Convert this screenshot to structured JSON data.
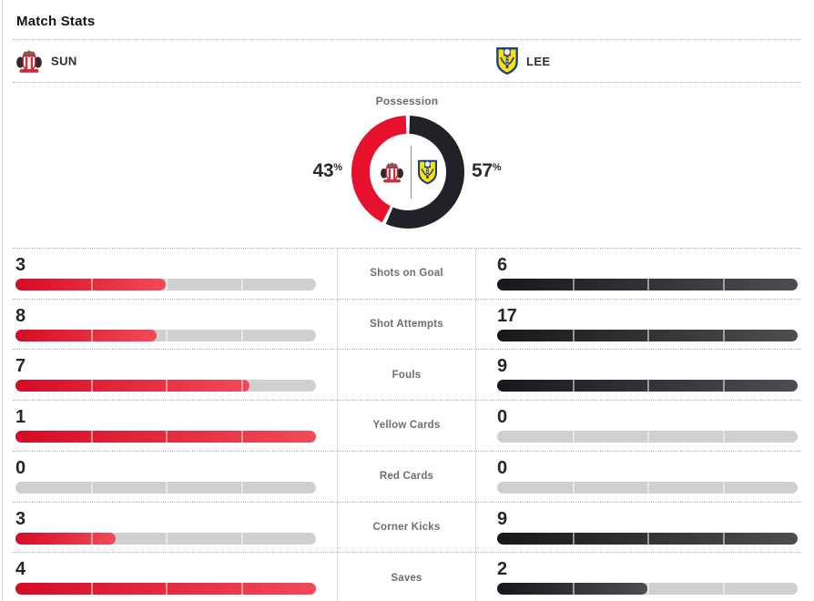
{
  "header": {
    "title": "Match Stats"
  },
  "teams": {
    "home": {
      "abbr": "SUN",
      "crest": "sunderland-crest",
      "color": "#d82a3c"
    },
    "away": {
      "abbr": "LEE",
      "crest": "leeds-united-crest",
      "color": "#17418c"
    }
  },
  "possession": {
    "title": "Possession",
    "home_value": "43",
    "away_value": "57",
    "unit": "%"
  },
  "chart_data": [
    {
      "type": "pie",
      "variant": "donut",
      "title": "Possession",
      "unit": "%",
      "series": [
        {
          "name": "SUN",
          "value": 43,
          "color": "#e8112d"
        },
        {
          "name": "LEE",
          "value": 57,
          "color": "#232128"
        }
      ],
      "legend_position": "sides",
      "center_content": "team-crests-with-divider"
    },
    {
      "type": "bar",
      "variant": "paired-horizontal-comparison",
      "categories": [
        "Shots on Goal",
        "Shot Attempts",
        "Fouls",
        "Yellow Cards",
        "Red Cards",
        "Corner Kicks",
        "Saves"
      ],
      "series": [
        {
          "name": "SUN",
          "values": [
            3,
            8,
            7,
            1,
            0,
            3,
            4
          ],
          "color_start": "#d60b26",
          "color_end": "#f24a59"
        },
        {
          "name": "LEE",
          "values": [
            6,
            17,
            9,
            0,
            0,
            9,
            2
          ],
          "color_start": "#18171b",
          "color_end": "#4e4d52"
        }
      ],
      "track_color": "#cfcfcf",
      "scaling": "row fill = value / max(row values)"
    }
  ]
}
